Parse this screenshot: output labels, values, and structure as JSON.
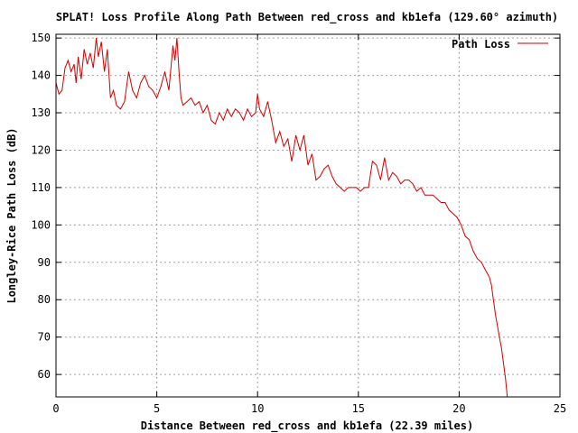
{
  "chart_data": {
    "type": "line",
    "title": "SPLAT! Loss Profile Along Path Between red_cross and kb1efa (129.60° azimuth)",
    "xlabel": "Distance Between red_cross and kb1efa (22.39 miles)",
    "ylabel": "Longley-Rice Path Loss (dB)",
    "xlim": [
      0,
      25
    ],
    "ylim": [
      54,
      151
    ],
    "x_ticks": [
      "0",
      "5",
      "10",
      "15",
      "20",
      "25"
    ],
    "y_ticks": [
      "60",
      "70",
      "80",
      "90",
      "100",
      "110",
      "120",
      "130",
      "140",
      "150"
    ],
    "grid": true,
    "legend_position": "top-right",
    "series": [
      {
        "name": "Path Loss",
        "color": "#cc0000",
        "x": [
          0.0,
          0.15,
          0.3,
          0.45,
          0.6,
          0.75,
          0.9,
          1.0,
          1.1,
          1.25,
          1.4,
          1.55,
          1.7,
          1.85,
          2.0,
          2.1,
          2.25,
          2.4,
          2.55,
          2.7,
          2.85,
          3.0,
          3.2,
          3.4,
          3.6,
          3.8,
          4.0,
          4.2,
          4.4,
          4.6,
          4.8,
          5.0,
          5.2,
          5.4,
          5.6,
          5.8,
          5.9,
          6.0,
          6.1,
          6.2,
          6.3,
          6.5,
          6.7,
          6.9,
          7.1,
          7.3,
          7.5,
          7.7,
          7.9,
          8.1,
          8.3,
          8.5,
          8.7,
          8.9,
          9.1,
          9.3,
          9.5,
          9.7,
          9.9,
          10.0,
          10.1,
          10.3,
          10.5,
          10.7,
          10.9,
          11.1,
          11.3,
          11.5,
          11.7,
          11.9,
          12.1,
          12.3,
          12.5,
          12.7,
          12.9,
          13.1,
          13.3,
          13.5,
          13.7,
          13.9,
          14.1,
          14.3,
          14.5,
          14.7,
          14.9,
          15.1,
          15.3,
          15.5,
          15.7,
          15.9,
          16.1,
          16.3,
          16.5,
          16.7,
          16.9,
          17.1,
          17.3,
          17.5,
          17.7,
          17.9,
          18.1,
          18.3,
          18.5,
          18.7,
          18.9,
          19.1,
          19.3,
          19.5,
          19.7,
          19.9,
          20.1,
          20.3,
          20.5,
          20.7,
          20.9,
          21.1,
          21.3,
          21.5,
          21.6,
          21.7,
          21.8,
          21.9,
          22.0,
          22.1,
          22.2,
          22.3,
          22.39
        ],
        "y": [
          138,
          135,
          136,
          142,
          144,
          141,
          143,
          138,
          145,
          139,
          147,
          143,
          146,
          142,
          150,
          145,
          149,
          141,
          147,
          134,
          136,
          132,
          131,
          133,
          141,
          136,
          134,
          138,
          140,
          137,
          136,
          134,
          137,
          141,
          136,
          148,
          144,
          150,
          141,
          134,
          132,
          133,
          134,
          132,
          133,
          130,
          132,
          128,
          127,
          130,
          128,
          131,
          129,
          131,
          130,
          128,
          131,
          129,
          130,
          135,
          131,
          129,
          133,
          128,
          122,
          125,
          121,
          123,
          117,
          124,
          120,
          124,
          116,
          119,
          112,
          113,
          115,
          116,
          113,
          111,
          110,
          109,
          110,
          110,
          110,
          109,
          110,
          110,
          117,
          116,
          112,
          118,
          112,
          114,
          113,
          111,
          112,
          112,
          111,
          109,
          110,
          108,
          108,
          108,
          107,
          106,
          106,
          104,
          103,
          102,
          100,
          97,
          96,
          93,
          91,
          90,
          88,
          86,
          84,
          80,
          76,
          73,
          70,
          67,
          63,
          59,
          54
        ]
      }
    ]
  }
}
